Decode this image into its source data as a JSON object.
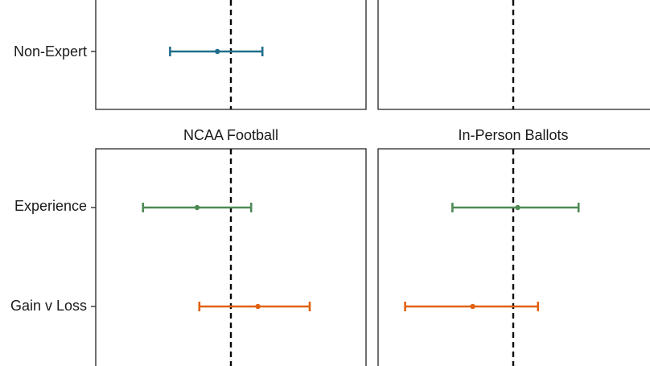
{
  "chart_data": {
    "type": "dot-and-whisker",
    "colors": {
      "nonexpert": "#1f6e8c",
      "experience": "#4e8a55",
      "gainloss": "#e0620f",
      "refline": "#000000",
      "frame": "#222222"
    },
    "panels": [
      {
        "title": "",
        "rows": [
          {
            "label": "Non-Expert",
            "color_key": "nonexpert",
            "estimate": -0.3,
            "low": -1.35,
            "high": 0.7
          }
        ],
        "xlim": [
          -3,
          3
        ],
        "reference_x": 0
      },
      {
        "title": "",
        "rows": [],
        "xlim": [
          -3,
          3
        ],
        "reference_x": 0
      },
      {
        "title": "NCAA Football",
        "rows": [
          {
            "label": "Experience",
            "color_key": "experience",
            "estimate": -0.75,
            "low": -1.95,
            "high": 0.45
          },
          {
            "label": "Gain v Loss",
            "color_key": "gainloss",
            "estimate": 0.6,
            "low": -0.7,
            "high": 1.75
          }
        ],
        "xlim": [
          -3,
          3
        ],
        "reference_x": 0
      },
      {
        "title": "In-Person Ballots",
        "rows": [
          {
            "label": "Experience",
            "color_key": "experience",
            "estimate": 0.1,
            "low": -1.35,
            "high": 1.45
          },
          {
            "label": "Gain v Loss",
            "color_key": "gainloss",
            "estimate": -0.9,
            "low": -2.4,
            "high": 0.55
          }
        ],
        "xlim": [
          -3,
          3
        ],
        "reference_x": 0
      }
    ]
  }
}
